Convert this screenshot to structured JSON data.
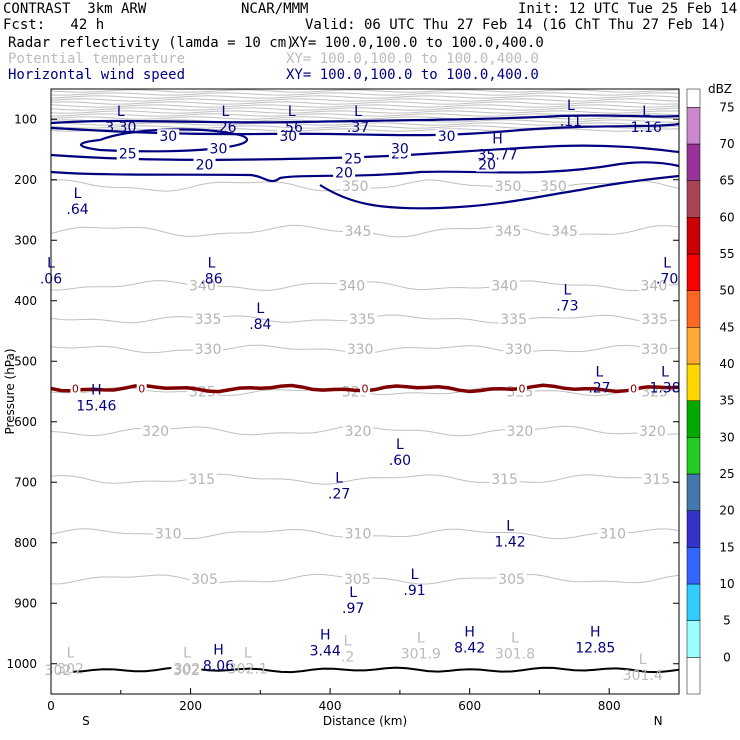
{
  "header": {
    "line1_left": "CONTRAST  3km ARW",
    "line1_center": "NCAR/MMM",
    "line1_right": "Init: 12 UTC Tue 25 Feb 14",
    "line2_left": "Fcst:   42 h",
    "line2_right": "Valid: 06 UTC Thu 27 Feb 14 (16 ChT Thu 27 Feb 14)",
    "fields": [
      {
        "name": "Radar reflectivity (lamda = 10 cm)",
        "xy": "XY= 100.0,100.0 to 100.0,400.0",
        "color": "#000000"
      },
      {
        "name": "Potential temperature",
        "xy": "XY= 100.0,100.0 to 100.0,400.0",
        "color": "#bbbbbb"
      },
      {
        "name": "Horizontal wind speed",
        "xy": "XY= 100.0,100.0 to 100.0,400.0",
        "color": "#000080"
      }
    ]
  },
  "chart_data": {
    "type": "contour-cross-section",
    "xlabel": "Distance (km)",
    "ylabel": "Pressure (hPa)",
    "xlim": [
      0,
      900
    ],
    "ylim": [
      1050,
      50
    ],
    "x_ticks": [
      0,
      200,
      400,
      600,
      800
    ],
    "y_ticks": [
      100,
      200,
      300,
      400,
      500,
      600,
      700,
      800,
      900,
      1000
    ],
    "x_end_labels": {
      "left": "S",
      "right": "N"
    },
    "colorbar": {
      "unit": "dBZ",
      "levels": [
        0,
        5,
        10,
        15,
        20,
        25,
        30,
        35,
        40,
        45,
        50,
        55,
        60,
        65,
        70,
        75
      ],
      "colors": [
        "#ffffff",
        "#99ffff",
        "#33ccff",
        "#3366ff",
        "#3333cc",
        "#4477aa",
        "#22cc22",
        "#00aa00",
        "#ffd700",
        "#ffaa33",
        "#ff6622",
        "#ff0000",
        "#cc0000",
        "#aa4455",
        "#993399",
        "#cc88cc"
      ]
    },
    "theta_contours": [
      {
        "level": 302,
        "pressure": 1010,
        "amp": 2,
        "labels": [
          {
            "x": 10,
            "text": "302"
          },
          {
            "x": 194,
            "text": "302"
          }
        ]
      },
      {
        "level": 305,
        "pressure": 860,
        "amp": 8,
        "labels": [
          {
            "x": 220,
            "text": "305"
          },
          {
            "x": 439,
            "text": "305"
          },
          {
            "x": 660,
            "text": "305"
          }
        ]
      },
      {
        "level": 310,
        "pressure": 785,
        "amp": 8,
        "labels": [
          {
            "x": 168,
            "text": "310"
          },
          {
            "x": 440,
            "text": "310"
          },
          {
            "x": 805,
            "text": "310"
          }
        ]
      },
      {
        "level": 315,
        "pressure": 695,
        "amp": 8,
        "labels": [
          {
            "x": 216,
            "text": "315"
          },
          {
            "x": 650,
            "text": "315"
          },
          {
            "x": 868,
            "text": "315"
          }
        ]
      },
      {
        "level": 320,
        "pressure": 615,
        "amp": 8,
        "labels": [
          {
            "x": 150,
            "text": "320"
          },
          {
            "x": 440,
            "text": "320"
          },
          {
            "x": 672,
            "text": "320"
          },
          {
            "x": 862,
            "text": "320"
          }
        ]
      },
      {
        "level": 325,
        "pressure": 550,
        "amp": 6,
        "labels": [
          {
            "x": 217,
            "text": "325"
          },
          {
            "x": 436,
            "text": "325"
          },
          {
            "x": 672,
            "text": "325"
          },
          {
            "x": 865,
            "text": "325"
          }
        ]
      },
      {
        "level": 330,
        "pressure": 480,
        "amp": 6,
        "labels": [
          {
            "x": 225,
            "text": "330"
          },
          {
            "x": 443,
            "text": "330"
          },
          {
            "x": 670,
            "text": "330"
          },
          {
            "x": 865,
            "text": "330"
          }
        ]
      },
      {
        "level": 335,
        "pressure": 430,
        "amp": 6,
        "labels": [
          {
            "x": 225,
            "text": "335"
          },
          {
            "x": 446,
            "text": "335"
          },
          {
            "x": 663,
            "text": "335"
          },
          {
            "x": 865,
            "text": "335"
          }
        ]
      },
      {
        "level": 340,
        "pressure": 375,
        "amp": 8,
        "labels": [
          {
            "x": 217,
            "text": "340"
          },
          {
            "x": 431,
            "text": "340"
          },
          {
            "x": 650,
            "text": "340"
          },
          {
            "x": 864,
            "text": "340"
          }
        ]
      },
      {
        "level": 345,
        "pressure": 285,
        "amp": 10,
        "labels": [
          {
            "x": 440,
            "text": "345"
          },
          {
            "x": 655,
            "text": "345"
          },
          {
            "x": 736,
            "text": "345"
          }
        ]
      },
      {
        "level": 350,
        "pressure": 210,
        "amp": 10,
        "labels": [
          {
            "x": 436,
            "text": "350"
          },
          {
            "x": 655,
            "text": "350"
          },
          {
            "x": 720,
            "text": "350"
          }
        ]
      }
    ],
    "wind_contours": [
      {
        "level": 20,
        "labels": [
          {
            "x": 220,
            "text": "20"
          },
          {
            "x": 420,
            "text": "20"
          },
          {
            "x": 625,
            "text": "20"
          }
        ]
      },
      {
        "level": 25,
        "labels": [
          {
            "x": 110,
            "text": "25"
          },
          {
            "x": 433,
            "text": "25"
          },
          {
            "x": 500,
            "text": "25"
          }
        ]
      },
      {
        "level": 30,
        "labels": [
          {
            "x": 168,
            "text": "30"
          },
          {
            "x": 240,
            "text": "30"
          },
          {
            "x": 340,
            "text": "30"
          },
          {
            "x": 500,
            "text": "30"
          },
          {
            "x": 567,
            "text": "30"
          }
        ]
      }
    ],
    "reflectivity_zero_line": {
      "level": 0,
      "pressure": 545,
      "label": "0"
    },
    "extrema": [
      {
        "type": "L",
        "value": "3.30",
        "x": 100,
        "p": 95
      },
      {
        "type": "L",
        "value": ".26",
        "x": 250,
        "p": 95
      },
      {
        "type": "L",
        "value": ".56",
        "x": 345,
        "p": 95
      },
      {
        "type": "L",
        "value": ".37",
        "x": 440,
        "p": 95
      },
      {
        "type": "L",
        "value": ".11",
        "x": 745,
        "p": 85
      },
      {
        "type": "L",
        "value": "1.16",
        "x": 853,
        "p": 95
      },
      {
        "type": "H",
        "value": "35.77",
        "x": 640,
        "p": 140
      },
      {
        "type": "L",
        "value": ".64",
        "x": 38,
        "p": 230
      },
      {
        "type": "L",
        "value": ".06",
        "x": 0,
        "p": 345
      },
      {
        "type": "L",
        "value": ".86",
        "x": 230,
        "p": 345
      },
      {
        "type": "L",
        "value": ".84",
        "x": 300,
        "p": 420
      },
      {
        "type": "L",
        "value": ".73",
        "x": 740,
        "p": 390
      },
      {
        "type": "L",
        "value": ".70",
        "x": 883,
        "p": 345
      },
      {
        "type": "L",
        "value": ".27",
        "x": 786,
        "p": 525
      },
      {
        "type": "L",
        "value": "1.38",
        "x": 880,
        "p": 525
      },
      {
        "type": "H",
        "value": "15.46",
        "x": 65,
        "p": 555
      },
      {
        "type": "L",
        "value": ".60",
        "x": 500,
        "p": 645
      },
      {
        "type": "L",
        "value": ".27",
        "x": 413,
        "p": 700
      },
      {
        "type": "L",
        "value": "1.42",
        "x": 658,
        "p": 780
      },
      {
        "type": "L",
        "value": ".91",
        "x": 521,
        "p": 860
      },
      {
        "type": "L",
        "value": ".97",
        "x": 433,
        "p": 890
      },
      {
        "type": "H",
        "value": "3.44",
        "x": 393,
        "p": 960
      },
      {
        "type": "H",
        "value": "8.42",
        "x": 600,
        "p": 955
      },
      {
        "type": "H",
        "value": "12.85",
        "x": 780,
        "p": 955
      },
      {
        "type": "H",
        "value": "8.06",
        "x": 240,
        "p": 985
      },
      {
        "type": "L",
        "value": "302",
        "x": 28,
        "p": 990,
        "style": "theta"
      },
      {
        "type": "L",
        "value": "302",
        "x": 195,
        "p": 990,
        "style": "theta"
      },
      {
        "type": "L",
        "value": "302.1",
        "x": 282,
        "p": 990,
        "style": "theta"
      },
      {
        "type": "L",
        "value": ".2",
        "x": 425,
        "p": 970,
        "style": "theta"
      },
      {
        "type": "L",
        "value": "301.9",
        "x": 530,
        "p": 965,
        "style": "theta"
      },
      {
        "type": "L",
        "value": "301.8",
        "x": 665,
        "p": 965,
        "style": "theta"
      },
      {
        "type": "L",
        "value": "301.4",
        "x": 848,
        "p": 1000,
        "style": "theta"
      }
    ]
  }
}
